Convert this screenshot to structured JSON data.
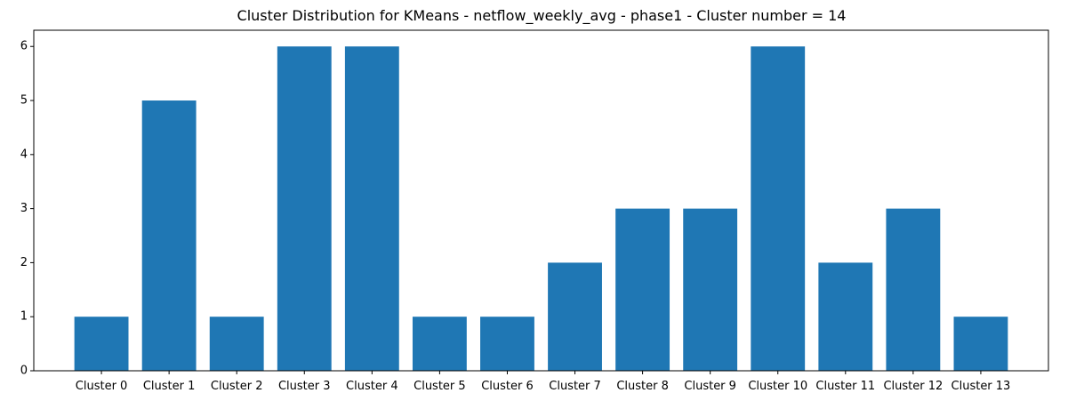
{
  "chart_data": {
    "type": "bar",
    "title": "Cluster Distribution for KMeans - netflow_weekly_avg - phase1 - Cluster number = 14",
    "xlabel": "",
    "ylabel": "",
    "categories": [
      "Cluster 0",
      "Cluster 1",
      "Cluster 2",
      "Cluster 3",
      "Cluster 4",
      "Cluster 5",
      "Cluster 6",
      "Cluster 7",
      "Cluster 8",
      "Cluster 9",
      "Cluster 10",
      "Cluster 11",
      "Cluster 12",
      "Cluster 13"
    ],
    "values": [
      1,
      5,
      1,
      6,
      6,
      1,
      1,
      2,
      3,
      3,
      6,
      2,
      3,
      1
    ],
    "ylim": [
      0,
      6.3
    ],
    "yticks": [
      0,
      1,
      2,
      3,
      4,
      5,
      6
    ],
    "grid": false,
    "legend": "none",
    "colors": {
      "bar": "#1f77b4",
      "axis": "#000000",
      "background": "#ffffff"
    }
  }
}
